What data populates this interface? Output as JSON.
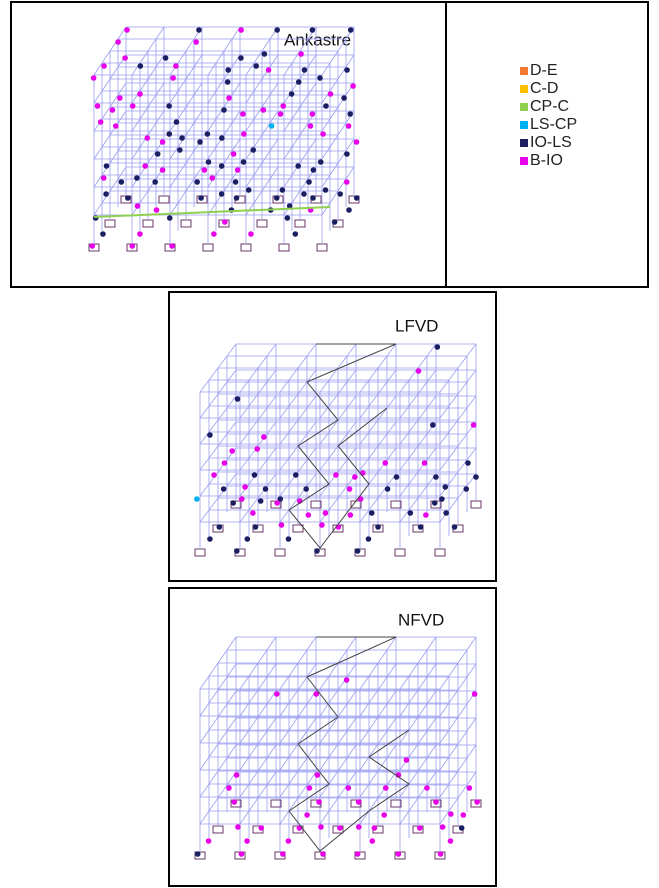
{
  "panels": [
    {
      "title": "Ankastre"
    },
    {
      "title": "LFVD"
    },
    {
      "title": "NFVD"
    }
  ],
  "legend": {
    "items": [
      {
        "label": "D-E",
        "color": "#f07a30"
      },
      {
        "label": "C-D",
        "color": "#ffc000"
      },
      {
        "label": "CP-C",
        "color": "#8fd14f"
      },
      {
        "label": "LS-CP",
        "color": "#00b0f0"
      },
      {
        "label": "IO-LS",
        "color": "#1b1f62"
      },
      {
        "label": "B-IO",
        "color": "#e800e8"
      }
    ]
  }
}
